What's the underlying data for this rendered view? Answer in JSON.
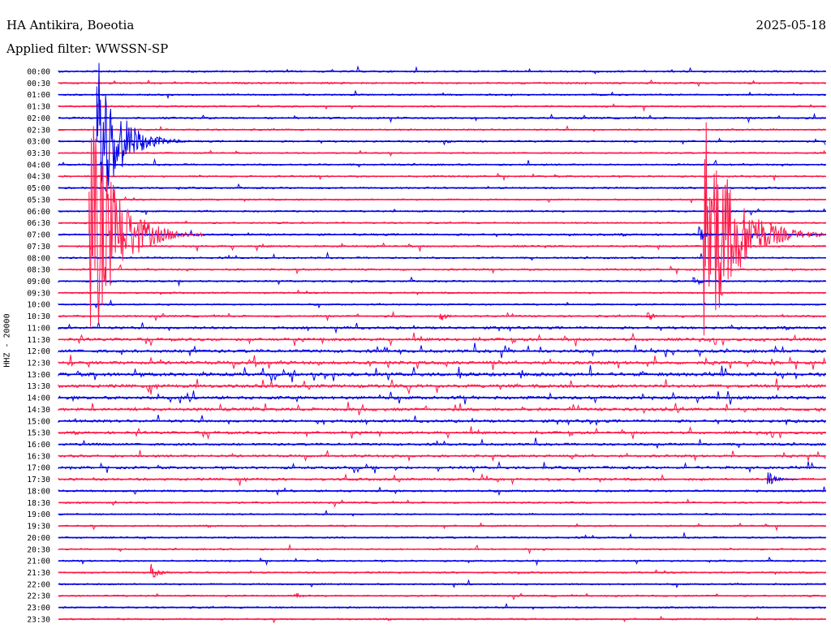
{
  "header": {
    "station": "HA Antikira, Boeotia",
    "filter": "Applied filter: WWSSN-SP",
    "date": "2025-05-18",
    "channel": "HHZ - 20000"
  },
  "colors": {
    "blue": "#0000e6",
    "red": "#ff1848",
    "background": "#ffffff"
  },
  "chart_data": {
    "type": "line",
    "title": "HA Antikira, Boeotia",
    "subtitle": "Applied filter: WWSSN-SP",
    "date": "2025-05-18",
    "ylabel": "HHZ - 20000",
    "series_colors": [
      "blue",
      "red"
    ],
    "rows": [
      "00:00",
      "00:30",
      "01:00",
      "01:30",
      "02:00",
      "02:30",
      "03:00",
      "03:30",
      "04:00",
      "04:30",
      "05:00",
      "05:30",
      "06:00",
      "06:30",
      "07:00",
      "07:30",
      "08:00",
      "08:30",
      "09:00",
      "09:30",
      "10:00",
      "10:30",
      "11:00",
      "11:30",
      "12:00",
      "12:30",
      "13:00",
      "13:30",
      "14:00",
      "14:30",
      "15:00",
      "15:30",
      "16:00",
      "16:30",
      "17:00",
      "17:30",
      "18:00",
      "18:30",
      "19:00",
      "19:30",
      "20:00",
      "20:30",
      "21:00",
      "21:30",
      "22:00",
      "22:30",
      "23:00",
      "23:30"
    ],
    "row_activity": [
      0.35,
      0.3,
      0.25,
      0.25,
      0.35,
      0.25,
      0.3,
      0.2,
      0.3,
      0.25,
      0.3,
      0.25,
      0.25,
      0.25,
      0.4,
      0.35,
      0.3,
      0.35,
      0.3,
      0.25,
      0.25,
      0.35,
      0.6,
      0.7,
      0.8,
      0.9,
      1.0,
      0.9,
      0.85,
      0.8,
      0.7,
      0.6,
      0.55,
      0.55,
      0.6,
      0.55,
      0.4,
      0.3,
      0.25,
      0.25,
      0.25,
      0.25,
      0.25,
      0.25,
      0.25,
      0.25,
      0.25,
      0.25
    ],
    "events": [
      {
        "row": 6,
        "minute": 1.5,
        "amp": 120,
        "len": 3.5,
        "color": "blue"
      },
      {
        "row": 14,
        "minute": 1.2,
        "amp": 160,
        "len": 4.5,
        "color": "red"
      },
      {
        "row": 14,
        "minute": 25.2,
        "amp": 170,
        "len": 5.5,
        "color": "red"
      },
      {
        "row": 14,
        "minute": 25.0,
        "amp": 12,
        "len": 1.0,
        "color": "blue"
      },
      {
        "row": 18,
        "minute": 24.8,
        "amp": 10,
        "len": 1.0,
        "color": "blue"
      },
      {
        "row": 21,
        "minute": 14.9,
        "amp": 8,
        "len": 1.0,
        "color": "red"
      },
      {
        "row": 21,
        "minute": 23.0,
        "amp": 8,
        "len": 1.0,
        "color": "red"
      },
      {
        "row": 35,
        "minute": 27.7,
        "amp": 12,
        "len": 1.2,
        "color": "blue"
      },
      {
        "row": 43,
        "minute": 3.6,
        "amp": 14,
        "len": 1.2,
        "color": "red"
      },
      {
        "row": 45,
        "minute": 9.3,
        "amp": 6,
        "len": 0.8,
        "color": "red"
      }
    ]
  }
}
